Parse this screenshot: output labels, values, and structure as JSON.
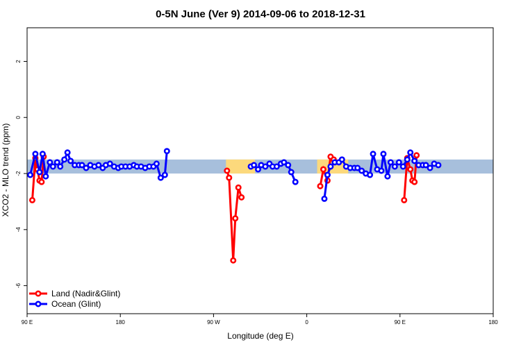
{
  "chart_data": {
    "type": "line",
    "title": "0-5N June (Ver 9)   2014-09-06 to 2018-12-31",
    "xlabel": "Longitude (deg E)",
    "ylabel": "XCO2 - MLO trend (ppm)",
    "xlim": [
      90,
      540
    ],
    "ylim": [
      -7,
      3.2
    ],
    "x_ticks": [
      {
        "value": 90,
        "label": "90 E"
      },
      {
        "value": 180,
        "label": "180"
      },
      {
        "value": 270,
        "label": "90 W"
      },
      {
        "value": 360,
        "label": "0"
      },
      {
        "value": 450,
        "label": "90 E"
      },
      {
        "value": 540,
        "label": "180"
      }
    ],
    "y_ticks": [
      {
        "value": -6,
        "label": "-6"
      },
      {
        "value": -4,
        "label": "-4"
      },
      {
        "value": -2,
        "label": "-2"
      },
      {
        "value": 0,
        "label": "0"
      },
      {
        "value": 2,
        "label": "2"
      }
    ],
    "bands": [
      {
        "x0": 90,
        "x1": 540,
        "y0": -2.0,
        "y1": -1.5,
        "color": "#a7bfdc"
      },
      {
        "x0": 282,
        "x1": 310,
        "y0": -2.0,
        "y1": -1.5,
        "color": "#fcd97c"
      },
      {
        "x0": 370,
        "x1": 400,
        "y0": -2.0,
        "y1": -1.5,
        "color": "#fcd97c"
      }
    ],
    "series": [
      {
        "name": "Land (Nadir&Glint)",
        "color": "#ff0000",
        "segments": [
          [
            [
              95,
              -2.95
            ],
            [
              98,
              -1.45
            ],
            [
              100,
              -1.85
            ],
            [
              102,
              -2.25
            ],
            [
              104,
              -2.3
            ],
            [
              106,
              -1.4
            ]
          ],
          [
            [
              283,
              -1.9
            ],
            [
              285,
              -2.15
            ],
            [
              289,
              -5.1
            ],
            [
              291,
              -3.6
            ],
            [
              294,
              -2.5
            ],
            [
              297,
              -2.85
            ]
          ],
          [
            [
              373,
              -2.45
            ],
            [
              376,
              -1.85
            ],
            [
              380,
              -2.25
            ],
            [
              383,
              -1.4
            ],
            [
              386,
              -1.5
            ]
          ],
          [
            [
              454,
              -2.95
            ],
            [
              457,
              -1.45
            ],
            [
              460,
              -1.85
            ],
            [
              462,
              -2.25
            ],
            [
              464,
              -2.3
            ],
            [
              466,
              -1.35
            ]
          ]
        ]
      },
      {
        "name": "Ocean (Glint)",
        "color": "#0000ff",
        "segments": [
          [
            [
              93,
              -2.05
            ],
            [
              98,
              -1.3
            ],
            [
              102,
              -1.95
            ],
            [
              105,
              -1.3
            ],
            [
              108,
              -2.1
            ],
            [
              112,
              -1.6
            ],
            [
              115,
              -1.75
            ],
            [
              119,
              -1.6
            ],
            [
              122,
              -1.75
            ],
            [
              126,
              -1.5
            ],
            [
              129,
              -1.25
            ],
            [
              132,
              -1.55
            ],
            [
              136,
              -1.7
            ],
            [
              140,
              -1.7
            ],
            [
              143,
              -1.7
            ],
            [
              147,
              -1.8
            ],
            [
              151,
              -1.7
            ],
            [
              155,
              -1.75
            ],
            [
              159,
              -1.7
            ],
            [
              163,
              -1.8
            ],
            [
              166,
              -1.7
            ],
            [
              170,
              -1.65
            ],
            [
              174,
              -1.75
            ],
            [
              178,
              -1.8
            ],
            [
              181,
              -1.75
            ],
            [
              185,
              -1.75
            ],
            [
              189,
              -1.75
            ],
            [
              193,
              -1.7
            ],
            [
              196,
              -1.75
            ],
            [
              200,
              -1.75
            ],
            [
              204,
              -1.8
            ],
            [
              208,
              -1.75
            ],
            [
              212,
              -1.75
            ],
            [
              215,
              -1.65
            ],
            [
              219,
              -2.15
            ],
            [
              223,
              -2.05
            ],
            [
              225,
              -1.2
            ]
          ],
          [
            [
              306,
              -1.75
            ],
            [
              309,
              -1.7
            ],
            [
              313,
              -1.85
            ],
            [
              316,
              -1.7
            ],
            [
              320,
              -1.75
            ],
            [
              324,
              -1.65
            ],
            [
              327,
              -1.75
            ],
            [
              331,
              -1.75
            ],
            [
              335,
              -1.65
            ],
            [
              338,
              -1.6
            ],
            [
              342,
              -1.7
            ],
            [
              345,
              -1.95
            ],
            [
              349,
              -2.3
            ]
          ],
          [
            [
              377,
              -2.9
            ],
            [
              380,
              -2.05
            ],
            [
              383,
              -1.75
            ],
            [
              387,
              -1.6
            ],
            [
              391,
              -1.6
            ],
            [
              394,
              -1.5
            ],
            [
              398,
              -1.75
            ],
            [
              402,
              -1.8
            ],
            [
              406,
              -1.8
            ],
            [
              409,
              -1.8
            ],
            [
              413,
              -1.9
            ],
            [
              417,
              -2.0
            ],
            [
              421,
              -2.05
            ],
            [
              424,
              -1.3
            ],
            [
              428,
              -1.85
            ],
            [
              432,
              -1.9
            ],
            [
              434,
              -1.3
            ],
            [
              438,
              -2.1
            ],
            [
              441,
              -1.6
            ],
            [
              445,
              -1.75
            ],
            [
              449,
              -1.6
            ],
            [
              453,
              -1.75
            ],
            [
              457,
              -1.5
            ],
            [
              460,
              -1.25
            ],
            [
              464,
              -1.55
            ],
            [
              468,
              -1.7
            ],
            [
              472,
              -1.7
            ],
            [
              475,
              -1.7
            ],
            [
              479,
              -1.8
            ],
            [
              483,
              -1.65
            ],
            [
              487,
              -1.7
            ]
          ]
        ]
      }
    ],
    "legend": {
      "position": "bottom-left",
      "entries": [
        {
          "name": "Land (Nadir&Glint)",
          "color": "#ff0000"
        },
        {
          "name": "Ocean (Glint)",
          "color": "#0000ff"
        }
      ]
    }
  }
}
